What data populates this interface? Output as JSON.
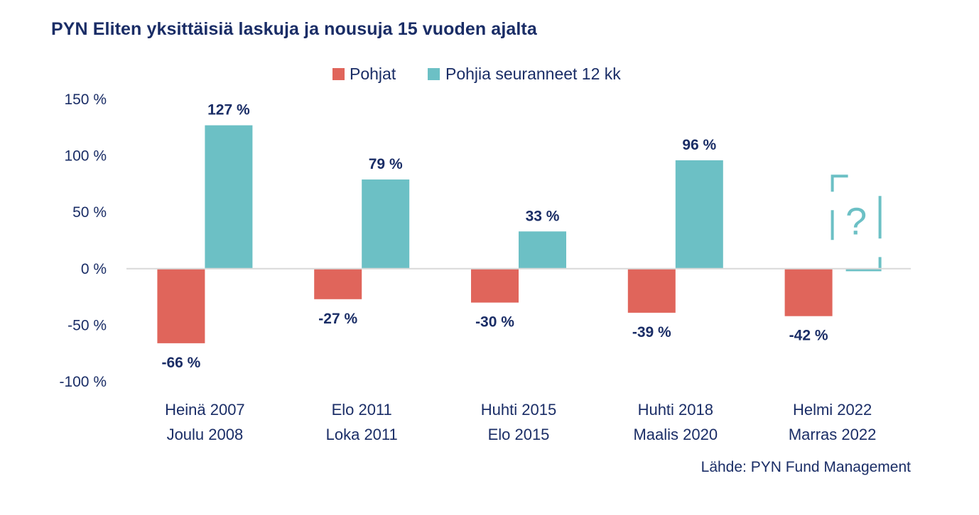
{
  "chart_data": {
    "type": "bar",
    "title": "PYN Eliten yksittäisiä laskuja ja nousuja 15 vuoden ajalta",
    "categories": [
      [
        "Heinä 2007",
        "Joulu 2008"
      ],
      [
        "Elo 2011",
        "Loka 2011"
      ],
      [
        "Huhti 2015",
        "Elo 2015"
      ],
      [
        "Huhti 2018",
        "Maalis 2020"
      ],
      [
        "Helmi 2022",
        "Marras 2022"
      ]
    ],
    "series": [
      {
        "name": "Pohjat",
        "color": "#e0655b",
        "values": [
          -66,
          -27,
          -30,
          -39,
          -42
        ],
        "labels": [
          "-66 %",
          "-27 %",
          "-30 %",
          "-39 %",
          "-42 %"
        ]
      },
      {
        "name": "Pohjia seuranneet 12 kk",
        "color": "#6cc0c5",
        "values": [
          127,
          79,
          33,
          96,
          null
        ],
        "labels": [
          "127 %",
          "79 %",
          "33 %",
          "96 %",
          null
        ]
      }
    ],
    "placeholder": {
      "category_index": 4,
      "series_index": 1,
      "symbol": "?",
      "color": "#6cc0c5"
    },
    "yticks": [
      150,
      100,
      50,
      0,
      -50,
      -100
    ],
    "ytick_labels": [
      "150 %",
      "100 %",
      "50 %",
      "0 %",
      "-50 %",
      "-100 %"
    ],
    "ylim": [
      -100,
      150
    ],
    "xlabel": "",
    "ylabel": "",
    "legend": "top-center"
  },
  "source": "Lähde: PYN Fund Management",
  "colors": {
    "text": "#1a2d66",
    "axis": "#d9d9d9"
  }
}
